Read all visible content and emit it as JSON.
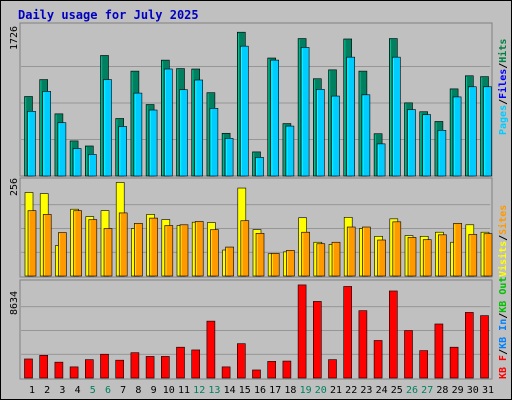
{
  "chart_data": [
    {
      "type": "bar",
      "title": "Daily usage for July 2025",
      "panel": "top",
      "ymax_label": "1726",
      "legend": [
        "Pages",
        "Files",
        "Hits"
      ],
      "legend_colors": [
        "#00ccff",
        "#0000ff",
        "#008040"
      ],
      "categories": [
        "1",
        "2",
        "3",
        "4",
        "5",
        "6",
        "7",
        "8",
        "9",
        "10",
        "11",
        "12",
        "13",
        "14",
        "15",
        "16",
        "17",
        "18",
        "19",
        "20",
        "21",
        "22",
        "23",
        "24",
        "25",
        "26",
        "27",
        "28",
        "29",
        "30",
        "31"
      ],
      "weekend_days": [
        "5",
        "6",
        "12",
        "13",
        "19",
        "20",
        "26",
        "27"
      ],
      "ylim": [
        0,
        1726
      ],
      "series": [
        {
          "name": "Hits",
          "color": "#008060",
          "values": [
            940,
            1140,
            735,
            415,
            355,
            1425,
            680,
            1240,
            845,
            1370,
            1270,
            1265,
            985,
            505,
            1700,
            285,
            1395,
            620,
            1625,
            1150,
            1255,
            1620,
            1240,
            500,
            1625,
            865,
            760,
            645,
            1030,
            1185,
            1175
          ]
        },
        {
          "name": "Files",
          "color": "#00ccff",
          "values": [
            765,
            1000,
            630,
            325,
            255,
            1140,
            585,
            980,
            780,
            1265,
            1020,
            1135,
            800,
            445,
            1535,
            220,
            1370,
            590,
            1520,
            1025,
            945,
            1405,
            960,
            380,
            1405,
            785,
            725,
            540,
            935,
            1055,
            1055
          ]
        }
      ]
    },
    {
      "type": "bar",
      "panel": "middle",
      "ymax_label": "256",
      "legend": [
        "Visits",
        "Sites"
      ],
      "legend_colors": [
        "#ffff00",
        "#ff9900"
      ],
      "categories": [
        "1",
        "2",
        "3",
        "4",
        "5",
        "6",
        "7",
        "8",
        "9",
        "10",
        "11",
        "12",
        "13",
        "14",
        "15",
        "16",
        "17",
        "18",
        "19",
        "20",
        "21",
        "22",
        "23",
        "24",
        "25",
        "26",
        "27",
        "28",
        "29",
        "30",
        "31"
      ],
      "ylim": [
        0,
        256
      ],
      "series": [
        {
          "name": "Visits",
          "color": "#ffff00",
          "values": [
            225,
            222,
            82,
            180,
            160,
            176,
            252,
            128,
            166,
            152,
            136,
            145,
            144,
            70,
            237,
            125,
            60,
            65,
            157,
            91,
            85,
            158,
            128,
            107,
            154,
            109,
            107,
            118,
            91,
            138,
            118
          ]
        },
        {
          "name": "Sites",
          "color": "#ff9900",
          "values": [
            176,
            166,
            117,
            176,
            152,
            128,
            170,
            142,
            156,
            136,
            138,
            147,
            125,
            78,
            149,
            115,
            61,
            69,
            118,
            87,
            91,
            132,
            132,
            97,
            146,
            104,
            98,
            111,
            142,
            112,
            114
          ]
        }
      ]
    },
    {
      "type": "bar",
      "panel": "bottom",
      "ymax_label": "8634",
      "legend": [
        "KB F",
        "KB In",
        "KB Out"
      ],
      "legend_colors": [
        "#ff0000",
        "#0080ff",
        "#00c000"
      ],
      "categories": [
        "1",
        "2",
        "3",
        "4",
        "5",
        "6",
        "7",
        "8",
        "9",
        "10",
        "11",
        "12",
        "13",
        "14",
        "15",
        "16",
        "17",
        "18",
        "19",
        "20",
        "21",
        "22",
        "23",
        "24",
        "25",
        "26",
        "27",
        "28",
        "29",
        "30",
        "31"
      ],
      "ylim": [
        0,
        8634
      ],
      "series": [
        {
          "name": "KB F",
          "color": "#ff0000",
          "values": [
            1730,
            2060,
            1440,
            1010,
            1670,
            2160,
            1620,
            2300,
            1960,
            1960,
            2800,
            2550,
            5170,
            1010,
            3120,
            730,
            1510,
            1540,
            8460,
            6960,
            1670,
            8320,
            6120,
            3410,
            7910,
            4310,
            2490,
            4910,
            2800,
            5960,
            5670
          ]
        }
      ]
    }
  ]
}
